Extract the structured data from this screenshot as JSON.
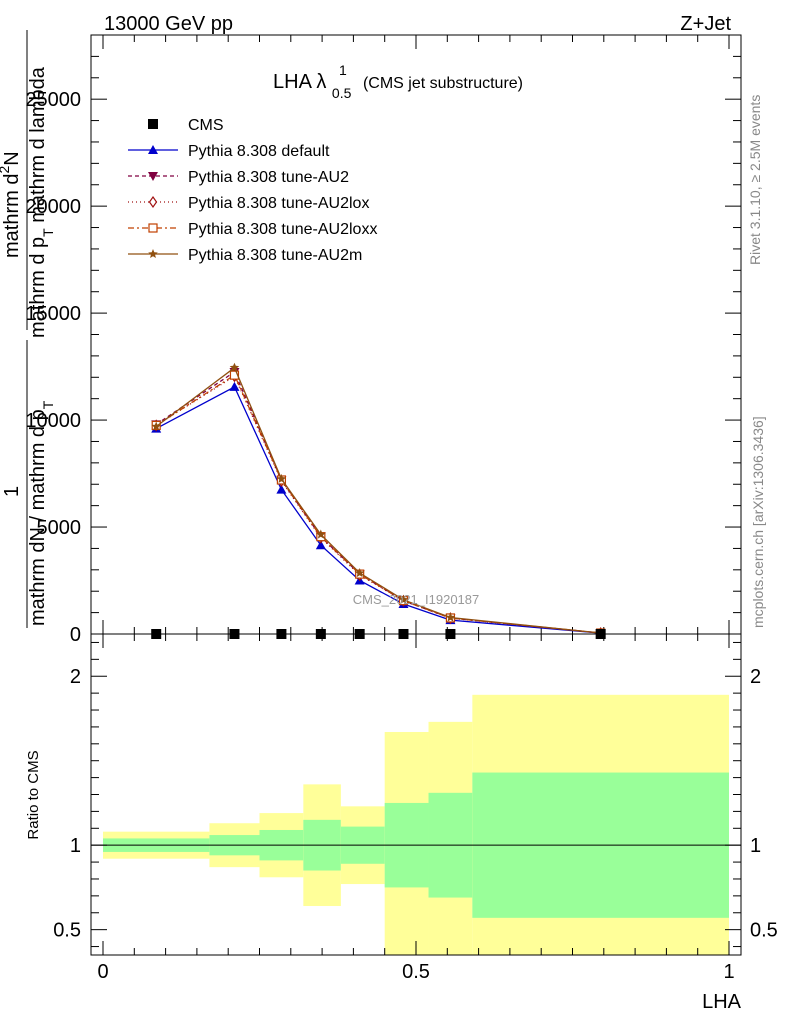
{
  "header": {
    "left": "13000 GeV pp",
    "right": "Z+Jet"
  },
  "side_labels": {
    "rivet": "Rivet 3.1.10, ≥ 2.5M events",
    "mcplots": "mcplots.cern.ch [arXiv:1306.3436]"
  },
  "chart_data": [
    {
      "type": "line",
      "title_main": "LHA λ",
      "title_sup": "1",
      "title_sub": "0.5",
      "title_note": "(CMS jet substructure)",
      "watermark": "CMS_2021_I1920187",
      "ylabel": "1 / mathrm dN / mathrm d p_T mathrm d^2N / mathrm d p_T mathrm d lambda",
      "ylabel_parts": {
        "numer_top": "mathrm d",
        "numer_sup": "2",
        "numer_rest": "N",
        "denom_top": "mathrm d p",
        "denom_sub": "T",
        "denom_rest": " mathrm d lambda",
        "one": "1",
        "lower": "mathrm dN / mathrm d p",
        "lower_sub": "T"
      },
      "xlim": [
        0,
        1
      ],
      "ylim": [
        0,
        28000
      ],
      "yticks": [
        0,
        5000,
        10000,
        15000,
        20000,
        25000
      ],
      "ytick_labels": [
        "0",
        "5000",
        "10000",
        "15000",
        "20000",
        "25000"
      ],
      "legend_position": "top-left",
      "x": [
        0.085,
        0.21,
        0.285,
        0.348,
        0.41,
        0.48,
        0.555,
        0.795
      ],
      "cms_values": [
        0,
        0,
        0,
        0,
        0,
        0,
        0,
        0
      ],
      "series": [
        {
          "name": "CMS",
          "color": "#000000",
          "marker": "square"
        },
        {
          "name": "Pythia 8.308 default",
          "color": "#0000cc",
          "marker": "triangle-up",
          "dash": "",
          "values": [
            9600,
            11550,
            6750,
            4150,
            2500,
            1400,
            650,
            40
          ]
        },
        {
          "name": "Pythia 8.308 tune-AU2",
          "color": "#800040",
          "marker": "triangle-down",
          "dash": "4,3",
          "values": [
            9800,
            12250,
            7200,
            4550,
            2800,
            1550,
            750,
            45
          ]
        },
        {
          "name": "Pythia 8.308 tune-AU2lox",
          "color": "#a01010",
          "marker": "diamond-open",
          "dash": "1,3",
          "values": [
            9750,
            12050,
            7150,
            4500,
            2750,
            1550,
            740,
            45
          ]
        },
        {
          "name": "Pythia 8.308 tune-AU2loxx",
          "color": "#c04000",
          "marker": "square-open",
          "dash": "6,3,2,3",
          "values": [
            9750,
            12100,
            7200,
            4550,
            2800,
            1560,
            750,
            45
          ]
        },
        {
          "name": "Pythia 8.308 tune-AU2m",
          "color": "#905010",
          "marker": "star",
          "dash": "",
          "values": [
            9700,
            12450,
            7250,
            4650,
            2850,
            1600,
            770,
            45
          ]
        }
      ]
    },
    {
      "type": "area",
      "ylabel": "Ratio to CMS",
      "xlabel": "LHA",
      "xlim": [
        0,
        1
      ],
      "ylim": [
        0.35,
        2.25
      ],
      "yticks": [
        0.5,
        1,
        2
      ],
      "ytick_labels": [
        "0.5",
        "1",
        "2"
      ],
      "xticks": [
        0,
        0.5,
        1
      ],
      "xtick_labels": [
        "0",
        "0.5",
        "1"
      ],
      "reference_line": 1,
      "band_colors": {
        "inner": "#99ff99",
        "outer": "#ffff99"
      },
      "bins": [
        {
          "x0": 0.0,
          "x1": 0.17,
          "inner": [
            0.96,
            1.04
          ],
          "outer": [
            0.92,
            1.08
          ]
        },
        {
          "x0": 0.17,
          "x1": 0.25,
          "inner": [
            0.94,
            1.06
          ],
          "outer": [
            0.87,
            1.13
          ]
        },
        {
          "x0": 0.25,
          "x1": 0.32,
          "inner": [
            0.91,
            1.09
          ],
          "outer": [
            0.81,
            1.19
          ]
        },
        {
          "x0": 0.32,
          "x1": 0.38,
          "inner": [
            0.85,
            1.15
          ],
          "outer": [
            0.64,
            1.36
          ]
        },
        {
          "x0": 0.38,
          "x1": 0.45,
          "inner": [
            0.89,
            1.11
          ],
          "outer": [
            0.77,
            1.23
          ]
        },
        {
          "x0": 0.45,
          "x1": 0.52,
          "inner": [
            0.75,
            1.25
          ],
          "outer": [
            0.33,
            1.67
          ]
        },
        {
          "x0": 0.52,
          "x1": 0.59,
          "inner": [
            0.69,
            1.31
          ],
          "outer": [
            0.33,
            1.73
          ]
        },
        {
          "x0": 0.59,
          "x1": 1.0,
          "inner": [
            0.57,
            1.43
          ],
          "outer": [
            0.33,
            1.89
          ]
        }
      ]
    }
  ]
}
